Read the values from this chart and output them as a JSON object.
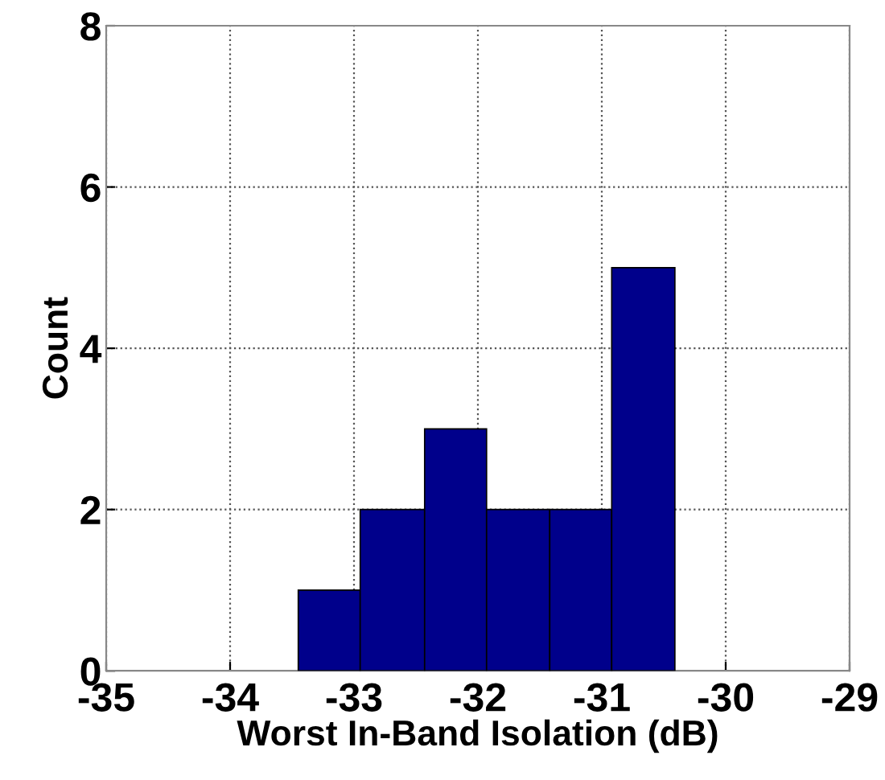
{
  "chart_data": {
    "type": "histogram",
    "xlabel": "Worst In-Band Isolation (dB)",
    "ylabel": "Count",
    "bins": [
      -33.45,
      -32.95,
      -32.43,
      -31.93,
      -31.42,
      -30.92,
      -30.41
    ],
    "values": [
      1,
      2,
      3,
      2,
      2,
      5
    ],
    "color": "#00008b",
    "xlim": [
      -35,
      -29
    ],
    "ylim": [
      0,
      8
    ],
    "xticks": [
      -35,
      -34,
      -33,
      -32,
      -31,
      -30,
      -29
    ],
    "yticks": [
      0,
      2,
      4,
      6,
      8
    ],
    "grid": true
  }
}
